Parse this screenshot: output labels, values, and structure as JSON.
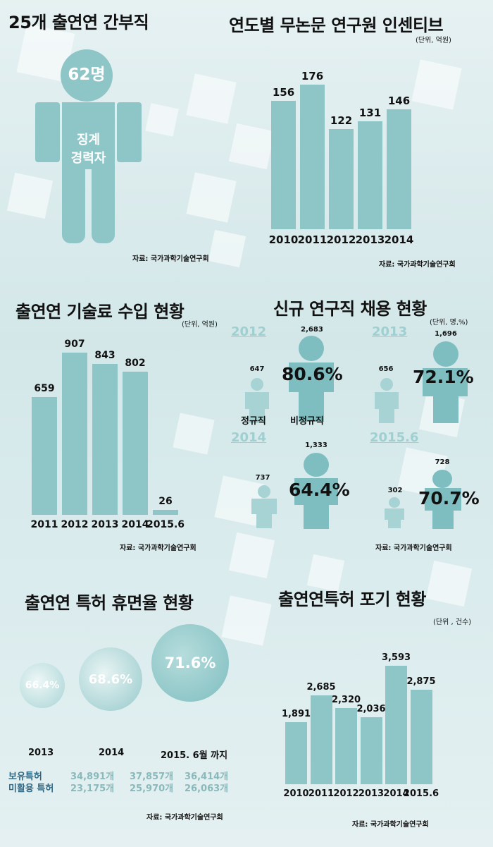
{
  "colors": {
    "bar": "#8ec5c7",
    "bar_light": "#a9d4d5",
    "person": "#7fbec0",
    "person_light": "#a7d3d4",
    "faded_year": "#9fd0d1",
    "legend_label": "#2e6a86",
    "legend_value": "#8ab9bb"
  },
  "source_text": "자료: 국가과학기술연구회",
  "sections": {
    "executives": {
      "title": "25개 출연연 간부직",
      "count": "62명",
      "label_line1": "징계",
      "label_line2": "경력자",
      "icon": "person-icon"
    },
    "incentive": {
      "title": "연도별  무논문 연구원 인센티브",
      "unit": "(단위, 억원)"
    },
    "royalty": {
      "title": "출연연 기술료 수입 현황",
      "unit": "(단위, 억원)"
    },
    "hiring": {
      "title": "신규 연구직 채용 현황",
      "unit": "(단위, 명,%)",
      "regular_label": "정규직",
      "nonregular_label": "비정규직",
      "groups": [
        {
          "year": "2012",
          "regular": "647",
          "nonregular": "2,683",
          "pct": "80.6%"
        },
        {
          "year": "2013",
          "regular": "656",
          "nonregular": "1,696",
          "pct": "72.1%"
        },
        {
          "year": "2014",
          "regular": "737",
          "nonregular": "1,333",
          "pct": "64.4%"
        },
        {
          "year": "2015.6",
          "regular": "302",
          "nonregular": "728",
          "pct": "70.7%"
        }
      ]
    },
    "dormancy": {
      "title": "출연연 특허 휴면율 현황",
      "circles": [
        {
          "year": "2013",
          "pct": "66.4%"
        },
        {
          "year": "2014",
          "pct": "68.6%"
        },
        {
          "year": "2015. 6월 까지",
          "pct": "71.6%"
        }
      ],
      "row1_label": "보유특허",
      "row2_label": "미활용 특허",
      "row1_values": [
        "34,891개",
        "37,857개",
        "36,414개"
      ],
      "row2_values": [
        "23,175개",
        "25,970개",
        "26,063개"
      ]
    },
    "abandon": {
      "title": "출연연특허 포기 현황",
      "unit": "(단위 , 건수)"
    }
  },
  "chart_data": [
    {
      "type": "bar",
      "title": "연도별  무논문 연구원 인센티브",
      "categories": [
        "2010",
        "2011",
        "2012",
        "2013",
        "2014"
      ],
      "values": [
        156,
        176,
        122,
        131,
        146
      ],
      "labels": [
        "156",
        "176",
        "122",
        "131",
        "146"
      ],
      "ylim": [
        0,
        176
      ],
      "unit": "(단위, 억원)"
    },
    {
      "type": "bar",
      "title": "출연연 기술료 수입 현황",
      "categories": [
        "2011",
        "2012",
        "2013",
        "2014",
        "2015.6"
      ],
      "values": [
        659,
        907,
        843,
        802,
        26
      ],
      "labels": [
        "659",
        "907",
        "843",
        "802",
        "26"
      ],
      "ylim": [
        0,
        907
      ],
      "unit": "(단위, 억원)"
    },
    {
      "type": "bar",
      "title": "출연연특허 포기 현황",
      "categories": [
        "2010",
        "2011",
        "2012",
        "2013",
        "2014",
        "2015.6"
      ],
      "values": [
        1891,
        2685,
        2320,
        2036,
        3593,
        2875
      ],
      "labels": [
        "1,891",
        "2,685",
        "2,320",
        "2,036",
        "3,593",
        "2,875"
      ],
      "ylim": [
        0,
        3593
      ],
      "unit": "(단위 , 건수)"
    }
  ]
}
